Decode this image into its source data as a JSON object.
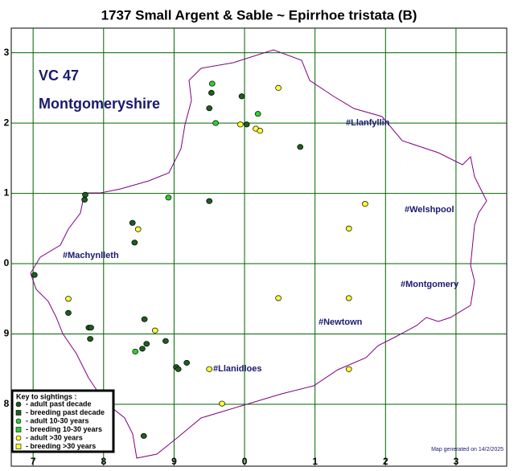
{
  "chart_data": {
    "type": "scatter",
    "title": "1737 Small Argent & Sable ~ Epirrhoe tristata (B)",
    "region_code": "VC 47",
    "region_name": "Montgomeryshire",
    "towns": [
      "#Llanfyllin",
      "#Welshpool",
      "#Machynlleth",
      "#Montgomery",
      "#Newtown",
      "#Llanidloes"
    ],
    "legend_title": "Key to sightings :",
    "footer": "Map generated on 14/2/2025",
    "xlim": [
      -0.31,
      6.72
    ],
    "ylim": [
      -0.88,
      5.35
    ],
    "xticks": [
      {
        "value": 0,
        "label": "7"
      },
      {
        "value": 1,
        "label": "8"
      },
      {
        "value": 2,
        "label": "9"
      },
      {
        "value": 3,
        "label": "0"
      },
      {
        "value": 4,
        "label": "1"
      },
      {
        "value": 5,
        "label": "2"
      },
      {
        "value": 6,
        "label": "3"
      }
    ],
    "yticks": [
      {
        "value": 5,
        "label": "3"
      },
      {
        "value": 4,
        "label": "2"
      },
      {
        "value": 3,
        "label": "1"
      },
      {
        "value": 2,
        "label": "0"
      },
      {
        "value": 1,
        "label": "9"
      },
      {
        "value": 0,
        "label": "8"
      }
    ],
    "grid": true,
    "series": [
      {
        "name": "- adult past decade",
        "color": "#1d5e1d",
        "marker": "circle",
        "x": [
          2.53,
          2.5,
          2.96,
          3.03,
          3.79,
          0.74,
          0.73,
          2.5,
          1.41,
          1.44,
          0.02,
          0.5,
          0.79,
          0.82,
          0.81,
          1.58,
          1.61,
          1.55,
          1.88,
          2.03,
          2.06,
          2.18,
          1.57
        ],
        "y": [
          4.43,
          4.21,
          4.38,
          3.98,
          3.66,
          2.98,
          2.91,
          2.89,
          2.58,
          2.3,
          1.84,
          1.3,
          1.09,
          1.09,
          0.93,
          1.21,
          0.86,
          0.79,
          0.9,
          0.53,
          0.5,
          0.59,
          -0.45
        ]
      },
      {
        "name": "- breeding past decade",
        "color": "#1d5e1d",
        "marker": "square",
        "x": [],
        "y": []
      },
      {
        "name": "- adult 10-30 years",
        "color": "#33cc33",
        "marker": "circle",
        "x": [
          2.54,
          2.59,
          3.19,
          1.92,
          1.45
        ],
        "y": [
          4.56,
          4.0,
          4.13,
          2.94,
          0.75
        ]
      },
      {
        "name": "- breeding 10-30 years",
        "color": "#33cc33",
        "marker": "square",
        "x": [],
        "y": []
      },
      {
        "name": "- adult >30 years",
        "color": "#ffff33",
        "marker": "circle",
        "x": [
          3.48,
          2.94,
          3.16,
          3.22,
          4.71,
          4.48,
          1.49,
          0.5,
          3.48,
          4.48,
          1.73,
          2.5,
          4.48,
          2.68
        ],
        "y": [
          4.5,
          3.98,
          3.92,
          3.89,
          2.85,
          2.5,
          2.49,
          1.5,
          1.51,
          1.51,
          1.05,
          0.5,
          0.5,
          0.01
        ]
      },
      {
        "name": "- breeding >30 years",
        "color": "#ffff33",
        "marker": "square",
        "x": [],
        "y": []
      }
    ]
  }
}
